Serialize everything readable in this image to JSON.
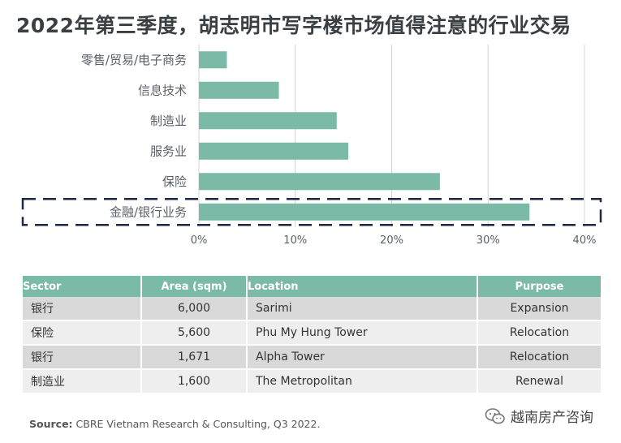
{
  "title": "2022年第三季度，胡志明市写字楼市场值得注意的行业交易",
  "chart_data": {
    "type": "bar",
    "orientation": "horizontal",
    "categories": [
      "零售/贸易/电子商务",
      "信息技术",
      "制造业",
      "服务业",
      "保险",
      "金融/银行业务"
    ],
    "values": [
      2.9,
      8.3,
      14.3,
      15.5,
      25.0,
      34.3
    ],
    "unit": "%",
    "xlim": [
      0,
      40
    ],
    "xticks": [
      "0%",
      "10%",
      "20%",
      "30%",
      "40%"
    ],
    "grid": true,
    "highlighted_category": "金融/银行业务",
    "bar_color": "#7cbaa8"
  },
  "table": {
    "headers": {
      "sector": "Sector",
      "area": "Area (sqm)",
      "location": "Location",
      "purpose": "Purpose"
    },
    "rows": [
      {
        "sector": "银行",
        "area": "6,000",
        "location": "Sarimi",
        "purpose": "Expansion"
      },
      {
        "sector": "保险",
        "area": "5,600",
        "location": "Phu My Hung Tower",
        "purpose": "Relocation"
      },
      {
        "sector": "银行",
        "area": "1,671",
        "location": "Alpha Tower",
        "purpose": "Relocation"
      },
      {
        "sector": "制造业",
        "area": "1,600",
        "location": "The Metropolitan",
        "purpose": "Renewal"
      }
    ]
  },
  "source": {
    "label": "Source:",
    "text": "CBRE Vietnam Research & Consulting, Q3 2022."
  },
  "watermark": {
    "text": "越南房产咨询",
    "icon": "wechat-icon"
  }
}
